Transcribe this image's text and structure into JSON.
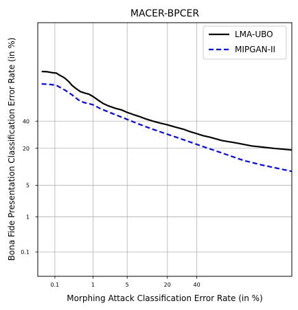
{
  "chart_data": {
    "type": "line",
    "title": "MACER-BPCER",
    "xlabel": "Morphing Attack Classification Error Rate (in %)",
    "ylabel": "Bona Fide Presentation Classification Error Rate (in %)",
    "x_scale": "probit",
    "y_scale": "probit",
    "xlim": [
      0.03,
      95
    ],
    "ylim": [
      0.015,
      97
    ],
    "x_ticks": [
      0.1,
      1,
      5,
      20,
      40
    ],
    "x_tick_labels": [
      "0.1",
      "1",
      "5",
      "20",
      "40"
    ],
    "y_ticks": [
      0.1,
      1,
      5,
      20,
      40
    ],
    "y_tick_labels": [
      "0.1",
      "1",
      "5",
      "20",
      "40"
    ],
    "grid": true,
    "legend": "top-right",
    "series": [
      {
        "name": "LMA-UBO",
        "color": "#000000",
        "style": "solid",
        "x": [
          0.04,
          0.06,
          0.08,
          0.11,
          0.14,
          0.17,
          0.2,
          0.25,
          0.3,
          0.4,
          0.5,
          0.65,
          0.8,
          1.0,
          1.3,
          1.7,
          2.2,
          3.0,
          4.0,
          5.0,
          6.5,
          8.0,
          10,
          13,
          16,
          20,
          25,
          30,
          35,
          40,
          45,
          50,
          60,
          70,
          80,
          90,
          95
        ],
        "y": [
          79.5,
          79.3,
          78.8,
          78.5,
          77.0,
          76.0,
          74.8,
          72.5,
          70.0,
          67.0,
          65.0,
          63.8,
          63.0,
          61.0,
          58.0,
          55.0,
          53.0,
          51.0,
          49.5,
          47.5,
          45.5,
          44.0,
          42.0,
          40.0,
          38.5,
          37.0,
          35.0,
          33.5,
          31.5,
          30.0,
          28.5,
          27.5,
          25.0,
          23.5,
          21.5,
          20.0,
          19.0
        ]
      },
      {
        "name": "MIPGAN-II",
        "color": "#0000ff",
        "style": "dashed",
        "x": [
          0.04,
          0.06,
          0.08,
          0.11,
          0.15,
          0.2,
          0.3,
          0.45,
          0.6,
          0.8,
          1.0,
          1.5,
          2.0,
          3.0,
          5.0,
          8.0,
          12,
          18,
          25,
          35,
          45,
          55,
          65,
          75,
          85,
          95
        ],
        "y": [
          71.0,
          70.8,
          70.5,
          70.0,
          68.0,
          66.0,
          62.5,
          58.0,
          56.0,
          55.0,
          54.0,
          50.5,
          48.5,
          45.5,
          41.5,
          37.5,
          34.0,
          30.5,
          27.5,
          24.0,
          21.0,
          18.5,
          16.0,
          13.5,
          11.5,
          9.0
        ]
      }
    ]
  }
}
